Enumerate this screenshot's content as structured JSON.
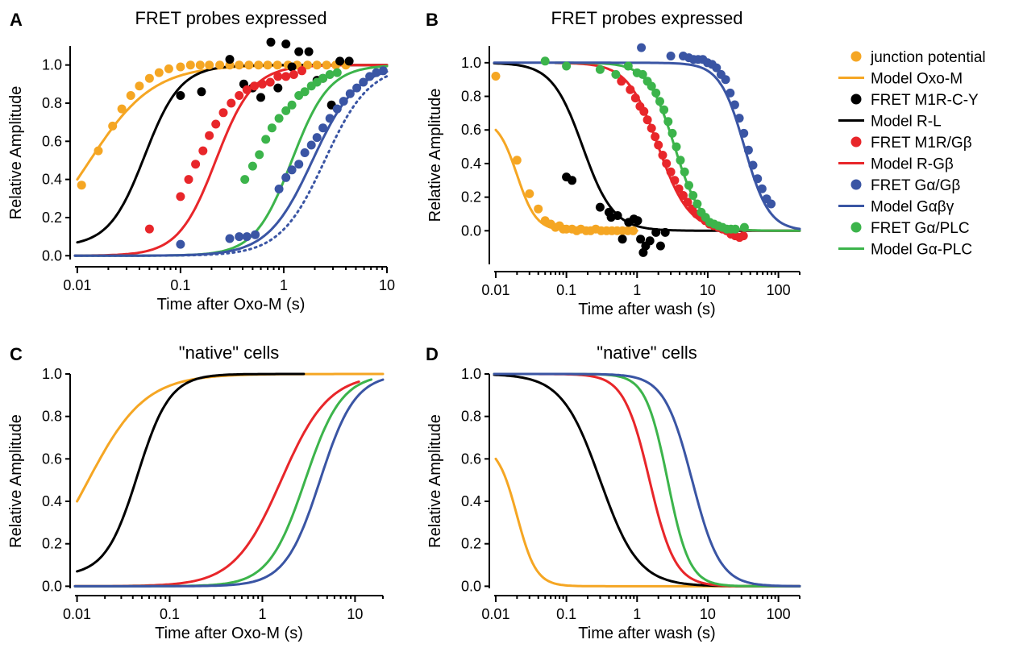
{
  "colors": {
    "orange": "#f5a623",
    "black": "#000000",
    "red": "#e8262a",
    "blue": "#3a55a4",
    "green": "#3cb44b"
  },
  "legend": [
    {
      "label": "junction potential",
      "kind": "dot",
      "color": "#f5a623"
    },
    {
      "label": "Model Oxo-M",
      "kind": "line",
      "color": "#f5a623"
    },
    {
      "label": "FRET M1R-C-Y",
      "kind": "dot",
      "color": "#000000"
    },
    {
      "label": "Model R-L",
      "kind": "line",
      "color": "#000000"
    },
    {
      "label": "FRET M1R/Gβ",
      "kind": "dot",
      "color": "#e8262a"
    },
    {
      "label": "Model R-Gβ",
      "kind": "line",
      "color": "#e8262a"
    },
    {
      "label": "FRET Gα/Gβ",
      "kind": "dot",
      "color": "#3a55a4"
    },
    {
      "label": "Model Gαβγ",
      "kind": "line",
      "color": "#3a55a4"
    },
    {
      "label": "FRET Gα/PLC",
      "kind": "dot",
      "color": "#3cb44b"
    },
    {
      "label": "Model Gα-PLC",
      "kind": "line",
      "color": "#3cb44b"
    }
  ],
  "chart_data": [
    {
      "panel": "A",
      "type": "scatter",
      "title": "FRET probes expressed",
      "xlabel": "Time after Oxo-M (s)",
      "ylabel": "Relative Amplitude",
      "xscale": "log",
      "xlim": [
        0.0095,
        10
      ],
      "ylim": [
        -0.02,
        1.1
      ],
      "xticks": [
        0.01,
        0.1,
        1,
        10
      ],
      "xtick_labels": [
        "0.01",
        "0.1",
        "1",
        "10"
      ],
      "yticks": [
        0,
        0.2,
        0.4,
        0.6,
        0.8,
        1.0
      ],
      "ytick_labels": [
        "0.0",
        "0.2",
        "0.4",
        "0.6",
        "0.8",
        "1.0"
      ],
      "series": [
        {
          "kind": "line",
          "color": "#f5a623",
          "curve": {
            "mode": "rise",
            "t": 0.013,
            "n": 1.4,
            "y0": 0.4,
            "x0": 0.01
          }
        },
        {
          "kind": "line",
          "color": "#000000",
          "curve": {
            "mode": "rise",
            "t": 0.045,
            "n": 2.5,
            "y0": 0.07,
            "x0": 0.01
          }
        },
        {
          "kind": "line",
          "color": "#e8262a",
          "curve": {
            "mode": "rise",
            "t": 0.22,
            "n": 2.4
          }
        },
        {
          "kind": "line",
          "color": "#3cb44b",
          "curve": {
            "mode": "rise",
            "t": 1.2,
            "n": 2.4
          }
        },
        {
          "kind": "line",
          "color": "#3a55a4",
          "curve": {
            "mode": "rise",
            "t": 1.9,
            "n": 2.0
          }
        },
        {
          "kind": "line",
          "color": "#3a55a4",
          "dotted": true,
          "curve": {
            "mode": "rise",
            "t": 2.5,
            "n": 2.0
          }
        },
        {
          "kind": "dots",
          "color": "#f5a623",
          "x": [
            0.011,
            0.016,
            0.022,
            0.027,
            0.033,
            0.04,
            0.05,
            0.062,
            0.077,
            0.1,
            0.125,
            0.155,
            0.19,
            0.24,
            0.3,
            0.37,
            0.46,
            0.57,
            0.7,
            0.87,
            1.1,
            1.35,
            1.7,
            2.1,
            2.6,
            3.2,
            4.0
          ],
          "y": [
            0.37,
            0.55,
            0.68,
            0.77,
            0.84,
            0.89,
            0.93,
            0.96,
            0.98,
            0.99,
            1.0,
            1.0,
            1.0,
            1.0,
            1.0,
            1.0,
            1.0,
            1.0,
            1.0,
            1.0,
            1.0,
            1.0,
            1.0,
            1.0,
            1.0,
            1.0,
            1.0
          ]
        },
        {
          "kind": "dots",
          "color": "#000000",
          "x": [
            0.1,
            0.16,
            0.3,
            0.41,
            0.5,
            0.6,
            0.75,
            0.88,
            1.05,
            1.2,
            1.4,
            1.75,
            2.1,
            2.4,
            2.9,
            3.5,
            4.3
          ],
          "y": [
            0.84,
            0.86,
            1.03,
            0.9,
            0.88,
            0.83,
            1.12,
            0.88,
            1.11,
            0.99,
            1.07,
            1.07,
            0.92,
            0.93,
            0.79,
            1.02,
            1.02
          ]
        },
        {
          "kind": "dots",
          "color": "#e8262a",
          "x": [
            0.05,
            0.1,
            0.12,
            0.14,
            0.165,
            0.19,
            0.22,
            0.26,
            0.31,
            0.37,
            0.44,
            0.52,
            0.62,
            0.74,
            0.88,
            1.05,
            1.25,
            1.5
          ],
          "y": [
            0.14,
            0.31,
            0.4,
            0.48,
            0.55,
            0.63,
            0.69,
            0.75,
            0.8,
            0.84,
            0.87,
            0.89,
            0.9,
            0.91,
            0.94,
            0.94,
            0.95,
            0.97
          ]
        },
        {
          "kind": "dots",
          "color": "#3cb44b",
          "x": [
            0.42,
            0.5,
            0.58,
            0.67,
            0.77,
            0.9,
            1.05,
            1.2,
            1.4,
            1.6,
            1.85,
            2.1,
            2.4,
            2.8,
            3.3
          ],
          "y": [
            0.4,
            0.47,
            0.53,
            0.61,
            0.67,
            0.72,
            0.76,
            0.79,
            0.84,
            0.86,
            0.89,
            0.91,
            0.93,
            0.95,
            0.96
          ]
        },
        {
          "kind": "dots",
          "color": "#3a55a4",
          "x": [
            0.1,
            0.3,
            0.37,
            0.44,
            0.53,
            0.9,
            1.05,
            1.2,
            1.4,
            1.6,
            1.85,
            2.1,
            2.4,
            2.8,
            3.3,
            3.8,
            4.4,
            5.1,
            5.9,
            6.8,
            7.9,
            9.2
          ],
          "y": [
            0.06,
            0.09,
            0.1,
            0.1,
            0.11,
            0.35,
            0.41,
            0.45,
            0.48,
            0.54,
            0.58,
            0.62,
            0.67,
            0.72,
            0.77,
            0.81,
            0.85,
            0.88,
            0.91,
            0.94,
            0.96,
            0.97
          ]
        }
      ]
    },
    {
      "panel": "B",
      "type": "scatter",
      "title": "FRET probes expressed",
      "xlabel": "Time after wash (s)",
      "ylabel": "Relative Amplitude",
      "xscale": "log",
      "xlim": [
        0.0095,
        200
      ],
      "ylim": [
        -0.2,
        1.1
      ],
      "xticks": [
        0.01,
        0.1,
        1,
        10,
        100
      ],
      "xtick_labels": [
        "0.01",
        "0.1",
        "1",
        "10",
        "100"
      ],
      "yticks": [
        0,
        0.2,
        0.4,
        0.6,
        0.8,
        1.0
      ],
      "ytick_labels": [
        "0.0",
        "0.2",
        "0.4",
        "0.6",
        "0.8",
        "1.0"
      ],
      "series": [
        {
          "kind": "line",
          "color": "#f5a623",
          "curve": {
            "mode": "decay",
            "t": 0.02,
            "n": 3.2,
            "x0": 0.01,
            "xmax": 1.0
          }
        },
        {
          "kind": "line",
          "color": "#000000",
          "curve": {
            "mode": "decay",
            "t": 0.17,
            "n": 2.0
          }
        },
        {
          "kind": "line",
          "color": "#e8262a",
          "curve": {
            "mode": "decay",
            "t": 2.0,
            "n": 2.0,
            "xmin": 0.07
          }
        },
        {
          "kind": "line",
          "color": "#3cb44b",
          "curve": {
            "mode": "decay",
            "t": 3.4,
            "n": 2.3,
            "xmin": 0.07
          }
        },
        {
          "kind": "line",
          "color": "#3a55a4",
          "curve": {
            "mode": "decay",
            "t": 33,
            "n": 2.5
          }
        },
        {
          "kind": "dots",
          "color": "#f5a623",
          "x": [
            0.01,
            0.02,
            0.03,
            0.04,
            0.05,
            0.06,
            0.07,
            0.08,
            0.09,
            0.1,
            0.12,
            0.14,
            0.16,
            0.19,
            0.22,
            0.26,
            0.31,
            0.37,
            0.44,
            0.52,
            0.62,
            0.74,
            0.88
          ],
          "y": [
            0.92,
            0.42,
            0.22,
            0.13,
            0.06,
            0.04,
            0.02,
            0.03,
            0.01,
            0.01,
            0.01,
            0.0,
            0.01,
            0.0,
            0.0,
            0.01,
            0.0,
            0.0,
            0.0,
            0.0,
            0.0,
            0.0,
            0.0
          ]
        },
        {
          "kind": "dots",
          "color": "#000000",
          "x": [
            0.1,
            0.12,
            0.3,
            0.4,
            0.43,
            0.53,
            0.62,
            0.76,
            0.9,
            1.02,
            1.12,
            1.22,
            1.32,
            1.52,
            1.85,
            2.15,
            2.5
          ],
          "y": [
            0.32,
            0.3,
            0.14,
            0.11,
            0.08,
            0.09,
            -0.05,
            0.05,
            0.07,
            0.06,
            -0.05,
            -0.13,
            -0.09,
            -0.06,
            -0.01,
            -0.09,
            -0.01
          ]
        },
        {
          "kind": "dots",
          "color": "#e8262a",
          "x": [
            0.6,
            0.8,
            0.95,
            1.1,
            1.25,
            1.4,
            1.6,
            1.8,
            2.0,
            2.3,
            2.6,
            3.0,
            3.4,
            3.9,
            4.5,
            5.2,
            6.0,
            6.9,
            8.0,
            9.2,
            10.6,
            12.2,
            14.0,
            16.1,
            18.5,
            21.3,
            24.5,
            28.2,
            32
          ],
          "y": [
            0.89,
            0.84,
            0.79,
            0.74,
            0.71,
            0.66,
            0.61,
            0.56,
            0.51,
            0.45,
            0.4,
            0.35,
            0.3,
            0.25,
            0.21,
            0.17,
            0.13,
            0.1,
            0.08,
            0.06,
            0.04,
            0.03,
            0.02,
            0.01,
            0.0,
            -0.02,
            -0.03,
            -0.04,
            -0.03
          ]
        },
        {
          "kind": "dots",
          "color": "#3cb44b",
          "x": [
            0.05,
            0.1,
            0.3,
            0.5,
            0.75,
            1.0,
            1.2,
            1.4,
            1.6,
            1.85,
            2.1,
            2.4,
            2.75,
            3.15,
            3.6,
            4.1,
            4.7,
            5.4,
            6.2,
            7.1,
            8.1,
            9.3,
            10.7,
            12.3,
            14.1,
            16.2,
            18.6,
            21.3,
            24.5,
            33
          ],
          "y": [
            1.01,
            0.98,
            0.96,
            0.93,
            0.98,
            0.94,
            0.93,
            0.89,
            0.86,
            0.82,
            0.77,
            0.72,
            0.65,
            0.58,
            0.5,
            0.42,
            0.35,
            0.27,
            0.21,
            0.16,
            0.11,
            0.08,
            0.05,
            0.04,
            0.03,
            0.02,
            0.01,
            0.01,
            0.01,
            0.02
          ]
        },
        {
          "kind": "dots",
          "color": "#3a55a4",
          "x": [
            1.15,
            3.0,
            4.5,
            5.4,
            6.3,
            7.3,
            8.5,
            9.9,
            11.5,
            13.3,
            15.4,
            17.9,
            20.8,
            24.1,
            28.0,
            32.4,
            37.6,
            43.6,
            50.6,
            58.7,
            68.1,
            79.0
          ],
          "y": [
            1.09,
            1.04,
            1.04,
            1.03,
            1.02,
            1.02,
            1.02,
            1.0,
            0.99,
            0.97,
            0.93,
            0.9,
            0.82,
            0.75,
            0.67,
            0.58,
            0.48,
            0.39,
            0.31,
            0.25,
            0.19,
            0.16
          ]
        }
      ]
    },
    {
      "panel": "C",
      "type": "line",
      "title": "\"native\" cells",
      "xlabel": "Time after Oxo-M (s)",
      "ylabel": "Relative Amplitude",
      "xscale": "log",
      "xlim": [
        0.0095,
        20
      ],
      "ylim": [
        -0.01,
        1.0
      ],
      "xticks": [
        0.01,
        0.1,
        1,
        10
      ],
      "xtick_labels": [
        "0.01",
        "0.1",
        "1",
        "10"
      ],
      "yticks": [
        0,
        0.2,
        0.4,
        0.6,
        0.8,
        1.0
      ],
      "ytick_labels": [
        "0.0",
        "0.2",
        "0.4",
        "0.6",
        "0.8",
        "1.0"
      ],
      "series": [
        {
          "kind": "line",
          "color": "#f5a623",
          "curve": {
            "mode": "rise",
            "t": 0.013,
            "n": 1.4,
            "y0": 0.4,
            "x0": 0.01
          }
        },
        {
          "kind": "line",
          "color": "#000000",
          "curve": {
            "mode": "rise",
            "t": 0.045,
            "n": 2.5,
            "y0": 0.07,
            "x0": 0.01,
            "xmax": 2.8
          }
        },
        {
          "kind": "line",
          "color": "#e8262a",
          "curve": {
            "mode": "rise",
            "t": 1.6,
            "n": 1.7,
            "xmax": 11
          }
        },
        {
          "kind": "line",
          "color": "#3cb44b",
          "curve": {
            "mode": "rise",
            "t": 2.9,
            "n": 2.2,
            "xmax": 15
          }
        },
        {
          "kind": "line",
          "color": "#3a55a4",
          "curve": {
            "mode": "rise",
            "t": 4.2,
            "n": 2.3,
            "xmax": 20
          }
        }
      ]
    },
    {
      "panel": "D",
      "type": "line",
      "title": "\"native\" cells",
      "xlabel": "Time after wash (s)",
      "ylabel": "Relative Amplitude",
      "xscale": "log",
      "xlim": [
        0.0095,
        200
      ],
      "ylim": [
        -0.01,
        1.0
      ],
      "xticks": [
        0.01,
        0.1,
        1,
        10,
        100
      ],
      "xtick_labels": [
        "0.01",
        "0.1",
        "1",
        "10",
        "100"
      ],
      "yticks": [
        0,
        0.2,
        0.4,
        0.6,
        0.8,
        1.0
      ],
      "ytick_labels": [
        "0.0",
        "0.2",
        "0.4",
        "0.6",
        "0.8",
        "1.0"
      ],
      "series": [
        {
          "kind": "line",
          "color": "#f5a623",
          "curve": {
            "mode": "decay",
            "t": 0.02,
            "n": 3.2,
            "x0": 0.01
          }
        },
        {
          "kind": "line",
          "color": "#000000",
          "curve": {
            "mode": "decay",
            "t": 0.3,
            "n": 1.6
          }
        },
        {
          "kind": "line",
          "color": "#e8262a",
          "curve": {
            "mode": "decay",
            "t": 1.5,
            "n": 2.4
          }
        },
        {
          "kind": "line",
          "color": "#3cb44b",
          "curve": {
            "mode": "decay",
            "t": 2.7,
            "n": 2.8
          }
        },
        {
          "kind": "line",
          "color": "#3a55a4",
          "curve": {
            "mode": "decay",
            "t": 6.0,
            "n": 2.2
          }
        }
      ]
    }
  ],
  "panel_letters": [
    "A",
    "B",
    "C",
    "D"
  ]
}
